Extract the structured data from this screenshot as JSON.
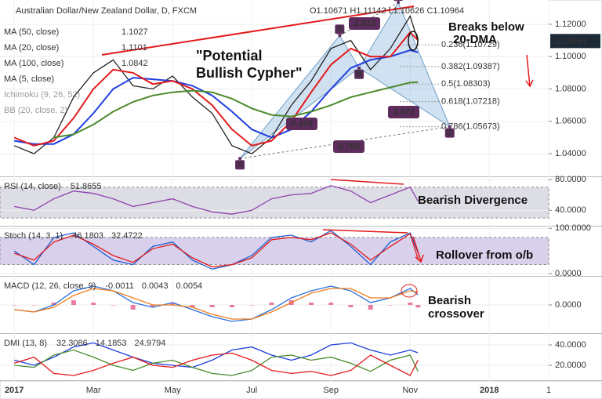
{
  "chart_data": [
    {
      "type": "line",
      "title": "Australian Dollar/New Zealand Dollar, D, FXCM",
      "ohlc": "O1.10671 H1.11142 L1.10626 C1.10964",
      "x": [
        0,
        0.5,
        1,
        1.5,
        2,
        2.5,
        3,
        3.5,
        4,
        4.5,
        5,
        5.5,
        6,
        6.5,
        7,
        7.5,
        8,
        8.5,
        9,
        9.5,
        10,
        10.2
      ],
      "xlim": [
        -0.36,
        13.5
      ],
      "xticks": [
        {
          "value": 0,
          "label": "2017"
        },
        {
          "value": 2,
          "label": "Mar"
        },
        {
          "value": 4,
          "label": "May"
        },
        {
          "value": 6,
          "label": "Jul"
        },
        {
          "value": 8,
          "label": "Sep"
        },
        {
          "value": 10,
          "label": "Nov"
        },
        {
          "value": 12,
          "label": "2018"
        },
        {
          "value": 13.5,
          "label": "1"
        }
      ],
      "ylim": [
        1.026,
        1.135
      ],
      "yticks": [
        {
          "value": 1.12,
          "label": "1.12000"
        },
        {
          "value": 1.1,
          "label": "1.10000"
        },
        {
          "value": 1.08,
          "label": "1.08000"
        },
        {
          "value": 1.06,
          "label": "1.06000"
        },
        {
          "value": 1.04,
          "label": "1.04000"
        }
      ],
      "grid": true,
      "series": [
        {
          "color": "#222222",
          "values": [
            1.045,
            1.04,
            1.05,
            1.075,
            1.09,
            1.098,
            1.082,
            1.08,
            1.088,
            1.075,
            1.065,
            1.045,
            1.04,
            1.05,
            1.07,
            1.085,
            1.105,
            1.11,
            1.092,
            1.105,
            1.125,
            1.10964
          ]
        },
        {
          "name": "MA (50, close)",
          "color": "#1f3fe0",
          "values": [
            1.048,
            1.046,
            1.046,
            1.052,
            1.065,
            1.08,
            1.087,
            1.086,
            1.085,
            1.082,
            1.076,
            1.066,
            1.055,
            1.05,
            1.055,
            1.066,
            1.08,
            1.093,
            1.098,
            1.1,
            1.104,
            1.1027
          ]
        },
        {
          "name": "MA (20, close)",
          "color": "#e31a1c",
          "values": [
            1.05,
            1.045,
            1.048,
            1.062,
            1.08,
            1.092,
            1.09,
            1.083,
            1.085,
            1.08,
            1.07,
            1.055,
            1.045,
            1.048,
            1.06,
            1.078,
            1.095,
            1.105,
            1.1,
            1.1,
            1.115,
            1.1101
          ]
        },
        {
          "name": "MA (100, close)",
          "color": "#4a8a2a",
          "values": [
            null,
            null,
            1.05,
            1.052,
            1.058,
            1.066,
            1.072,
            1.076,
            1.078,
            1.079,
            1.078,
            1.074,
            1.068,
            1.064,
            1.063,
            1.066,
            1.07,
            1.075,
            1.078,
            1.081,
            1.084,
            1.0842
          ]
        }
      ],
      "extra_legend": [
        "MA (5, close)",
        "Ichimoku (9, 26, 52)",
        "BB (20, close, 2)"
      ],
      "pattern": {
        "points": [
          {
            "label": "X",
            "x": 5.7,
            "y": 1.037
          },
          {
            "label": "A",
            "x": 8.22,
            "y": 1.113
          },
          {
            "label": "B",
            "x": 8.71,
            "y": 1.093
          },
          {
            "label": "C",
            "x": 9.7,
            "y": 1.1335
          },
          {
            "label": "D",
            "x": 11.0,
            "y": 1.05673
          }
        ],
        "ratios": [
          0.419,
          1.413,
          1.623,
          0.788
        ],
        "fib": [
          {
            "value": 1.10729,
            "label": "0.236(1.10729)",
            "color": "#333333"
          },
          {
            "value": 1.09387,
            "label": "0.382(1.09387)",
            "color": "#333333"
          },
          {
            "value": 1.08303,
            "label": "0.5(1.08303)",
            "color": "#8fb03c"
          },
          {
            "value": 1.07218,
            "label": "0.618(1.07218)",
            "color": "#333333"
          },
          {
            "value": 1.05673,
            "label": "0.786(1.05673)",
            "color": "#333333"
          }
        ]
      },
      "annotations": [
        [
          "\"Potential",
          "Bullish Cypher\""
        ],
        [
          "Breaks below",
          "20-DMA"
        ]
      ]
    },
    {
      "type": "line",
      "title": "RSI (14, close)",
      "ylim": [
        20,
        83
      ],
      "yticks": [
        {
          "value": 80,
          "label": "80.0000"
        },
        {
          "value": 40,
          "label": "40.0000"
        }
      ],
      "band": [
        30,
        70
      ],
      "band_color": "#dddde6",
      "series": [
        {
          "color": "#8e44ad",
          "values": [
            45,
            40,
            55,
            65,
            62,
            55,
            45,
            50,
            55,
            45,
            38,
            35,
            40,
            55,
            60,
            62,
            72,
            65,
            50,
            60,
            70,
            51.8655
          ]
        }
      ],
      "annotations": [
        [
          "Bearish Divergence"
        ]
      ]
    },
    {
      "type": "line",
      "title": "Stoch (14, 3, 1)",
      "ylim": [
        -5,
        104
      ],
      "yticks": [
        {
          "value": 100,
          "label": "100.0000"
        },
        {
          "value": 0,
          "label": "0.0000"
        }
      ],
      "band": [
        20,
        80
      ],
      "band_color": "#d9d0ec",
      "series": [
        {
          "color": "#1f5fd0",
          "values": [
            50,
            20,
            80,
            90,
            60,
            30,
            20,
            60,
            70,
            30,
            10,
            20,
            40,
            80,
            85,
            70,
            95,
            60,
            20,
            70,
            90,
            46.1803
          ]
        },
        {
          "color": "#e31a1c",
          "values": [
            45,
            30,
            70,
            85,
            65,
            40,
            25,
            55,
            65,
            35,
            15,
            20,
            35,
            75,
            80,
            75,
            90,
            65,
            30,
            60,
            88,
            32.4722
          ]
        }
      ],
      "annotations": [
        [
          "Rollover from o/b"
        ]
      ]
    },
    {
      "type": "line",
      "title": "MACD (12, 26, close, 9)",
      "ylim": [
        -0.012,
        0.012
      ],
      "yticks": [
        {
          "value": 0,
          "label": "0.0000"
        }
      ],
      "series": [
        {
          "color": "#e0457b",
          "style": "bars",
          "values": [
            0,
            0,
            0.001,
            0.002,
            0.001,
            0,
            -0.002,
            -0.001,
            0.001,
            -0.001,
            -0.001,
            -0.001,
            0,
            0.001,
            0.002,
            0.001,
            0.001,
            -0.001,
            -0.002,
            0,
            0.001,
            -0.0011
          ]
        },
        {
          "color": "#2a6fdb",
          "values": [
            -0.002,
            -0.003,
            0,
            0.006,
            0.008,
            0.006,
            0.001,
            -0.001,
            0.001,
            -0.002,
            -0.005,
            -0.007,
            -0.006,
            -0.002,
            0.003,
            0.006,
            0.008,
            0.006,
            0.001,
            0.003,
            0.007,
            0.0043
          ]
        },
        {
          "color": "#f07c1a",
          "values": [
            -0.002,
            -0.003,
            -0.001,
            0.004,
            0.007,
            0.006,
            0.003,
            0,
            0,
            -0.001,
            -0.004,
            -0.006,
            -0.006,
            -0.003,
            0.001,
            0.005,
            0.007,
            0.007,
            0.003,
            0.003,
            0.006,
            0.0054
          ]
        }
      ],
      "annotations": [
        [
          "Bearish",
          "crossover"
        ]
      ]
    },
    {
      "type": "line",
      "title": "DMI (13, 8)",
      "ylim": [
        5.4,
        50.8
      ],
      "yticks": [
        {
          "value": 40,
          "label": "40.0000"
        },
        {
          "value": 20,
          "label": "20.0000"
        }
      ],
      "series": [
        {
          "color": "#1f3fe0",
          "values": [
            25,
            20,
            28,
            38,
            42,
            35,
            28,
            22,
            20,
            18,
            25,
            35,
            38,
            30,
            25,
            30,
            40,
            42,
            35,
            30,
            35,
            32.3086
          ]
        },
        {
          "color": "#4a8a2a",
          "values": [
            20,
            18,
            30,
            35,
            28,
            20,
            15,
            22,
            25,
            18,
            12,
            10,
            15,
            28,
            30,
            25,
            28,
            22,
            14,
            25,
            30,
            14.1853
          ]
        },
        {
          "color": "#e31a1c",
          "values": [
            22,
            28,
            12,
            10,
            15,
            22,
            28,
            20,
            18,
            25,
            30,
            32,
            25,
            15,
            12,
            14,
            10,
            15,
            30,
            20,
            10,
            24.9794
          ]
        }
      ]
    }
  ]
}
